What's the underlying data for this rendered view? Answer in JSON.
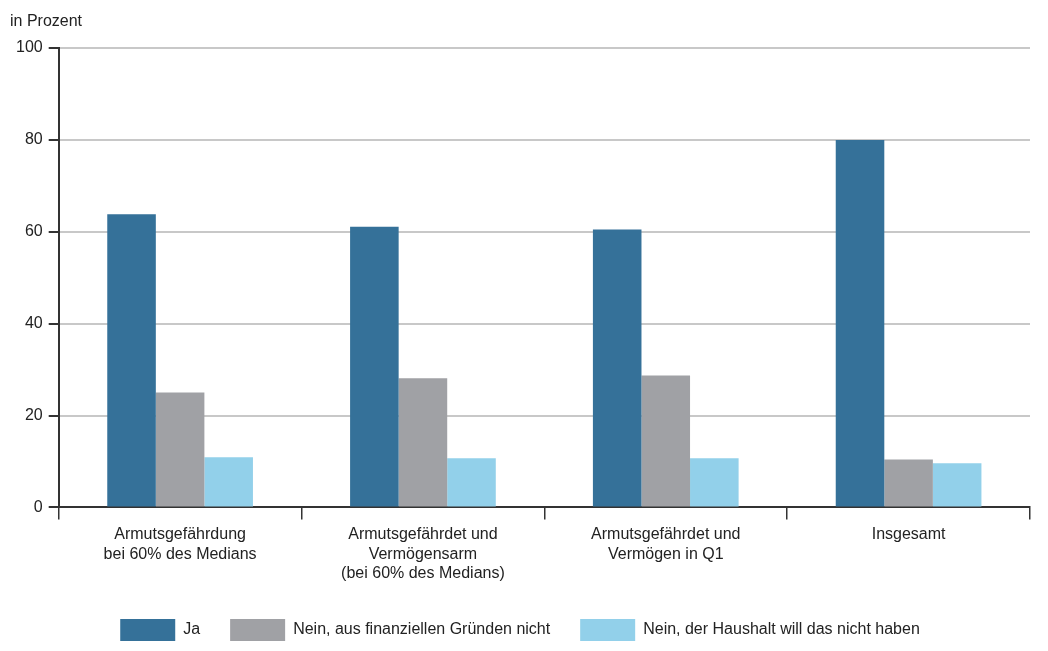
{
  "chart_data": {
    "type": "bar",
    "ylabel": "in Prozent",
    "categories": [
      "Armutsgefährdung\nbei 60% des Medians",
      "Armutsgefährdet und\nVermögensarm\n(bei 60% des Medians)",
      "Armutsgefährdet und\nVermögen in Q1",
      "Insgesamt"
    ],
    "series": [
      {
        "name": "Ja",
        "color": "#357199",
        "values": [
          63.8,
          61.1,
          60.5,
          80
        ]
      },
      {
        "name": "Nein, aus finanziellen Gründen nicht",
        "color": "#a0a1a5",
        "values": [
          25,
          28.1,
          28.7,
          10.4
        ]
      },
      {
        "name": "Nein, der Haushalt will das nicht haben",
        "color": "#92d0ea",
        "values": [
          10.9,
          10.7,
          10.7,
          9.6
        ]
      }
    ],
    "ylim": [
      0,
      100
    ],
    "yticks": [
      0,
      20,
      40,
      60,
      80,
      100
    ],
    "grid": "y",
    "legend": "bottom"
  }
}
